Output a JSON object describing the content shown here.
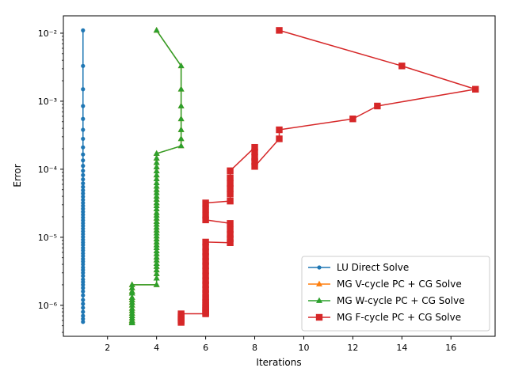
{
  "chart_data": {
    "type": "line",
    "xlabel": "Iterations",
    "ylabel": "Error",
    "yscale": "log",
    "xlim": [
      0.2,
      17.8
    ],
    "ylim": [
      3.5e-07,
      0.018
    ],
    "xticks": [
      2,
      4,
      6,
      8,
      10,
      12,
      14,
      16
    ],
    "xtick_labels": [
      "2",
      "4",
      "6",
      "8",
      "10",
      "12",
      "14",
      "16"
    ],
    "yticks": [
      1e-06,
      1e-05,
      0.0001,
      0.001,
      0.01
    ],
    "ytick_labels": [
      "10⁻⁶",
      "10⁻⁵",
      "10⁻⁴",
      "10⁻³",
      "10⁻²"
    ],
    "grid": false,
    "legend_position": "lower right",
    "series": [
      {
        "name": "LU Direct Solve",
        "color": "#1f77b4",
        "marker": "circle",
        "x": [
          1,
          1,
          1,
          1,
          1,
          1,
          1,
          1,
          1,
          1,
          1,
          1,
          1,
          1,
          1,
          1,
          1,
          1,
          1,
          1,
          1,
          1,
          1,
          1,
          1,
          1,
          1,
          1,
          1,
          1,
          1,
          1,
          1,
          1,
          1,
          1,
          1,
          1,
          1,
          1,
          1,
          1,
          1,
          1,
          1,
          1,
          1,
          1,
          1,
          1,
          1,
          1,
          1,
          1,
          1,
          1,
          1,
          1,
          1,
          1
        ],
        "y": [
          0.011,
          0.0033,
          0.0015,
          0.00085,
          0.00055,
          0.00038,
          0.00028,
          0.00021,
          0.000165,
          0.000135,
          0.000112,
          9.5e-05,
          8.2e-05,
          7.1e-05,
          6.2e-05,
          5.5e-05,
          4.9e-05,
          4.4e-05,
          3.95e-05,
          3.55e-05,
          3.2e-05,
          2.9e-05,
          2.62e-05,
          2.37e-05,
          2.15e-05,
          1.95e-05,
          1.77e-05,
          1.61e-05,
          1.47e-05,
          1.34e-05,
          1.22e-05,
          1.11e-05,
          1.01e-05,
          9.2e-06,
          8.4e-06,
          7.7e-06,
          7e-06,
          6.4e-06,
          5.8e-06,
          5.3e-06,
          4.8e-06,
          4.4e-06,
          4e-06,
          3.6e-06,
          3.3e-06,
          3e-06,
          2.7e-06,
          2.4e-06,
          2.2e-06,
          2e-06,
          1.8e-06,
          1.6e-06,
          1.4e-06,
          1.2e-06,
          1.05e-06,
          9.2e-07,
          8e-07,
          7e-07,
          6.3e-07,
          5.7e-07
        ]
      },
      {
        "name": "MG V-cycle PC + CG Solve",
        "color": "#ff7f0e",
        "marker": "triangle",
        "x": [
          4,
          5,
          5,
          5,
          5,
          5,
          5,
          5,
          4,
          4,
          4,
          4,
          4,
          4,
          4,
          4,
          4,
          4,
          4,
          4,
          4,
          4,
          4,
          4,
          4,
          4,
          4,
          4,
          4,
          4,
          4,
          4,
          4,
          4,
          4,
          4,
          4,
          4,
          4,
          4,
          4,
          4,
          4,
          4,
          4,
          4,
          4,
          3,
          3,
          3,
          3,
          3,
          3,
          3,
          3,
          3,
          3,
          3,
          3,
          3,
          3,
          3,
          3
        ],
        "y": [
          0.011,
          0.0033,
          0.0015,
          0.00085,
          0.00055,
          0.00038,
          0.00028,
          0.00022,
          0.00017,
          0.000145,
          0.000125,
          0.000108,
          9.4e-05,
          8.2e-05,
          7.2e-05,
          6.3e-05,
          5.6e-05,
          5e-05,
          4.5e-05,
          4e-05,
          3.6e-05,
          3.2e-05,
          2.9e-05,
          2.6e-05,
          2.3e-05,
          2.1e-05,
          1.9e-05,
          1.7e-05,
          1.55e-05,
          1.4e-05,
          1.27e-05,
          1.15e-05,
          1.04e-05,
          9.4e-06,
          8.5e-06,
          7.7e-06,
          7e-06,
          6.3e-06,
          5.7e-06,
          5.1e-06,
          4.6e-06,
          4.1e-06,
          3.7e-06,
          3.3e-06,
          2.9e-06,
          2.5e-06,
          2e-06,
          2e-06,
          1.8e-06,
          1.6e-06,
          1.5e-06,
          1.3e-06,
          1.2e-06,
          1.1e-06,
          1e-06,
          9e-07,
          8.3e-07,
          7.6e-07,
          7e-07,
          6.5e-07,
          6e-07,
          5.7e-07,
          5.5e-07
        ]
      },
      {
        "name": "MG W-cycle PC + CG Solve",
        "color": "#2ca02c",
        "marker": "triangle",
        "x": [
          4,
          5,
          5,
          5,
          5,
          5,
          5,
          5,
          4,
          4,
          4,
          4,
          4,
          4,
          4,
          4,
          4,
          4,
          4,
          4,
          4,
          4,
          4,
          4,
          4,
          4,
          4,
          4,
          4,
          4,
          4,
          4,
          4,
          4,
          4,
          4,
          4,
          4,
          4,
          4,
          4,
          4,
          4,
          4,
          4,
          4,
          4,
          3,
          3,
          3,
          3,
          3,
          3,
          3,
          3,
          3,
          3,
          3,
          3,
          3,
          3,
          3,
          3
        ],
        "y": [
          0.011,
          0.0033,
          0.0015,
          0.00085,
          0.00055,
          0.00038,
          0.00028,
          0.00022,
          0.00017,
          0.000145,
          0.000125,
          0.000108,
          9.4e-05,
          8.2e-05,
          7.2e-05,
          6.3e-05,
          5.6e-05,
          5e-05,
          4.5e-05,
          4e-05,
          3.6e-05,
          3.2e-05,
          2.9e-05,
          2.6e-05,
          2.3e-05,
          2.1e-05,
          1.9e-05,
          1.7e-05,
          1.55e-05,
          1.4e-05,
          1.27e-05,
          1.15e-05,
          1.04e-05,
          9.4e-06,
          8.5e-06,
          7.7e-06,
          7e-06,
          6.3e-06,
          5.7e-06,
          5.1e-06,
          4.6e-06,
          4.1e-06,
          3.7e-06,
          3.3e-06,
          2.9e-06,
          2.5e-06,
          2e-06,
          2e-06,
          1.8e-06,
          1.6e-06,
          1.5e-06,
          1.3e-06,
          1.2e-06,
          1.1e-06,
          1e-06,
          9e-07,
          8.3e-07,
          7.6e-07,
          7e-07,
          6.5e-07,
          6e-07,
          5.7e-07,
          5.5e-07
        ]
      },
      {
        "name": "MG F-cycle PC + CG Solve",
        "color": "#d62728",
        "marker": "square",
        "x": [
          9,
          14,
          17,
          13,
          12,
          9,
          9,
          8,
          8,
          8,
          8,
          8,
          7,
          7,
          7,
          7,
          7,
          7,
          6,
          6,
          6,
          6,
          7,
          7,
          7,
          7,
          7,
          6,
          6,
          6,
          6,
          6,
          6,
          6,
          6,
          6,
          6,
          6,
          6,
          6,
          6,
          6,
          6,
          6,
          6,
          6,
          6,
          6,
          6,
          5,
          5,
          5,
          5,
          5,
          5
        ],
        "y": [
          0.011,
          0.0033,
          0.0015,
          0.00085,
          0.00055,
          0.00038,
          0.00028,
          0.00011,
          0.00013,
          0.00015,
          0.00018,
          0.00021,
          9.5e-05,
          7.5e-05,
          6.2e-05,
          5.2e-05,
          4.3e-05,
          3.4e-05,
          3.2e-05,
          2.6e-05,
          2.1e-05,
          1.8e-05,
          1.6e-05,
          1.3e-05,
          1.1e-05,
          9.5e-06,
          8.3e-06,
          8.5e-06,
          7.2e-06,
          6.1e-06,
          5.2e-06,
          4.4e-06,
          3.8e-06,
          3.2e-06,
          2.7e-06,
          2.3e-06,
          2e-06,
          1.7e-06,
          1.5e-06,
          1.3e-06,
          1.2e-06,
          1.1e-06,
          1e-06,
          9.5e-07,
          9e-07,
          8.5e-07,
          8e-07,
          7.7e-07,
          7.5e-07,
          7.5e-07,
          7e-07,
          6.6e-07,
          6.2e-07,
          5.9e-07,
          5.6e-07
        ]
      }
    ]
  }
}
